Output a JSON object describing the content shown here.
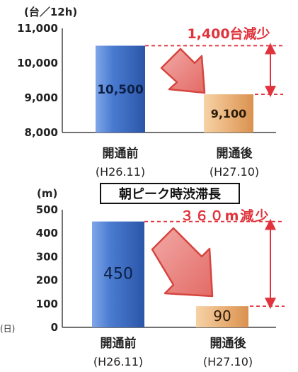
{
  "chart_data": [
    {
      "type": "bar",
      "unit_label": "(台／12h)",
      "categories": [
        "開通前\n(H26.11)",
        "開通後\n(H27.10)"
      ],
      "category_names": [
        "開通前",
        "開通後"
      ],
      "category_dates": [
        "(H26.11)",
        "(H27.10)"
      ],
      "values": [
        10500,
        9100
      ],
      "value_labels": [
        "10,500",
        "9,100"
      ],
      "ylim": [
        8000,
        11000
      ],
      "yticks": [
        8000,
        9000,
        10000,
        11000
      ],
      "ytick_labels": [
        "8,000",
        "9,000",
        "10,000",
        "11,000"
      ],
      "annotation": "1,400台減少",
      "bar_colors": [
        "#3f6fc6",
        "#e5a868"
      ],
      "accent_color": "#e0333c"
    },
    {
      "type": "bar",
      "unit_label": "(m)",
      "title": "朝ピーク時渋滞長",
      "categories": [
        "開通前\n(H26.11)",
        "開通後\n(H27.10)"
      ],
      "category_names": [
        "開通前",
        "開通後"
      ],
      "category_dates": [
        "(H26.11)",
        "(H27.10)"
      ],
      "values": [
        450,
        90
      ],
      "value_labels": [
        "450",
        "90"
      ],
      "ylim": [
        0,
        500
      ],
      "yticks": [
        0,
        100,
        200,
        300,
        400,
        500
      ],
      "ytick_labels": [
        "0",
        "100",
        "200",
        "300",
        "400",
        "500"
      ],
      "annotation": "３６０m減少",
      "bar_colors": [
        "#3f6fc6",
        "#e5a868"
      ],
      "accent_color": "#e0333c"
    }
  ],
  "side_label": "(日)"
}
